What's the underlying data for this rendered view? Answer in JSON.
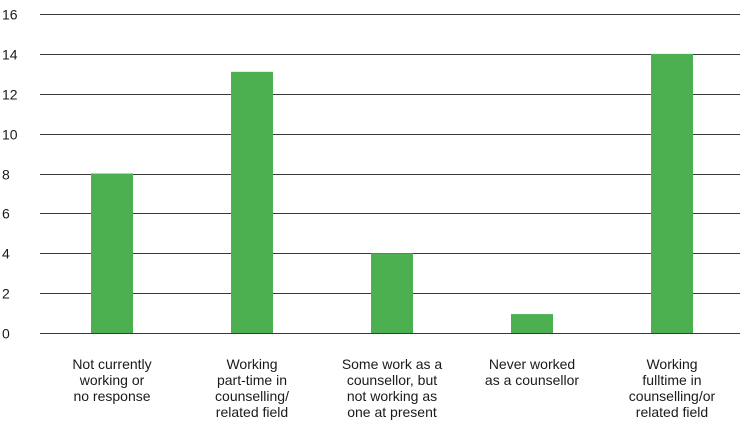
{
  "chart_data": {
    "type": "bar",
    "title": "",
    "xlabel": "",
    "ylabel": "",
    "ylim": [
      0,
      16
    ],
    "yticks": [
      0,
      2,
      4,
      6,
      8,
      10,
      12,
      14,
      16
    ],
    "grid": true,
    "legend": "none",
    "bar_color": "#4caf50",
    "categories": [
      [
        "Not currently",
        "working or",
        "no response"
      ],
      [
        "Working",
        "part-time in",
        "counselling/",
        "related field"
      ],
      [
        "Some work as a",
        "counsellor, but",
        "not working as",
        "one at present"
      ],
      [
        "Never worked",
        "as a counsellor"
      ],
      [
        "Working",
        "fulltime in",
        "counselling/or",
        "related field"
      ]
    ],
    "values": [
      8,
      13.1,
      4,
      0.95,
      14
    ]
  }
}
